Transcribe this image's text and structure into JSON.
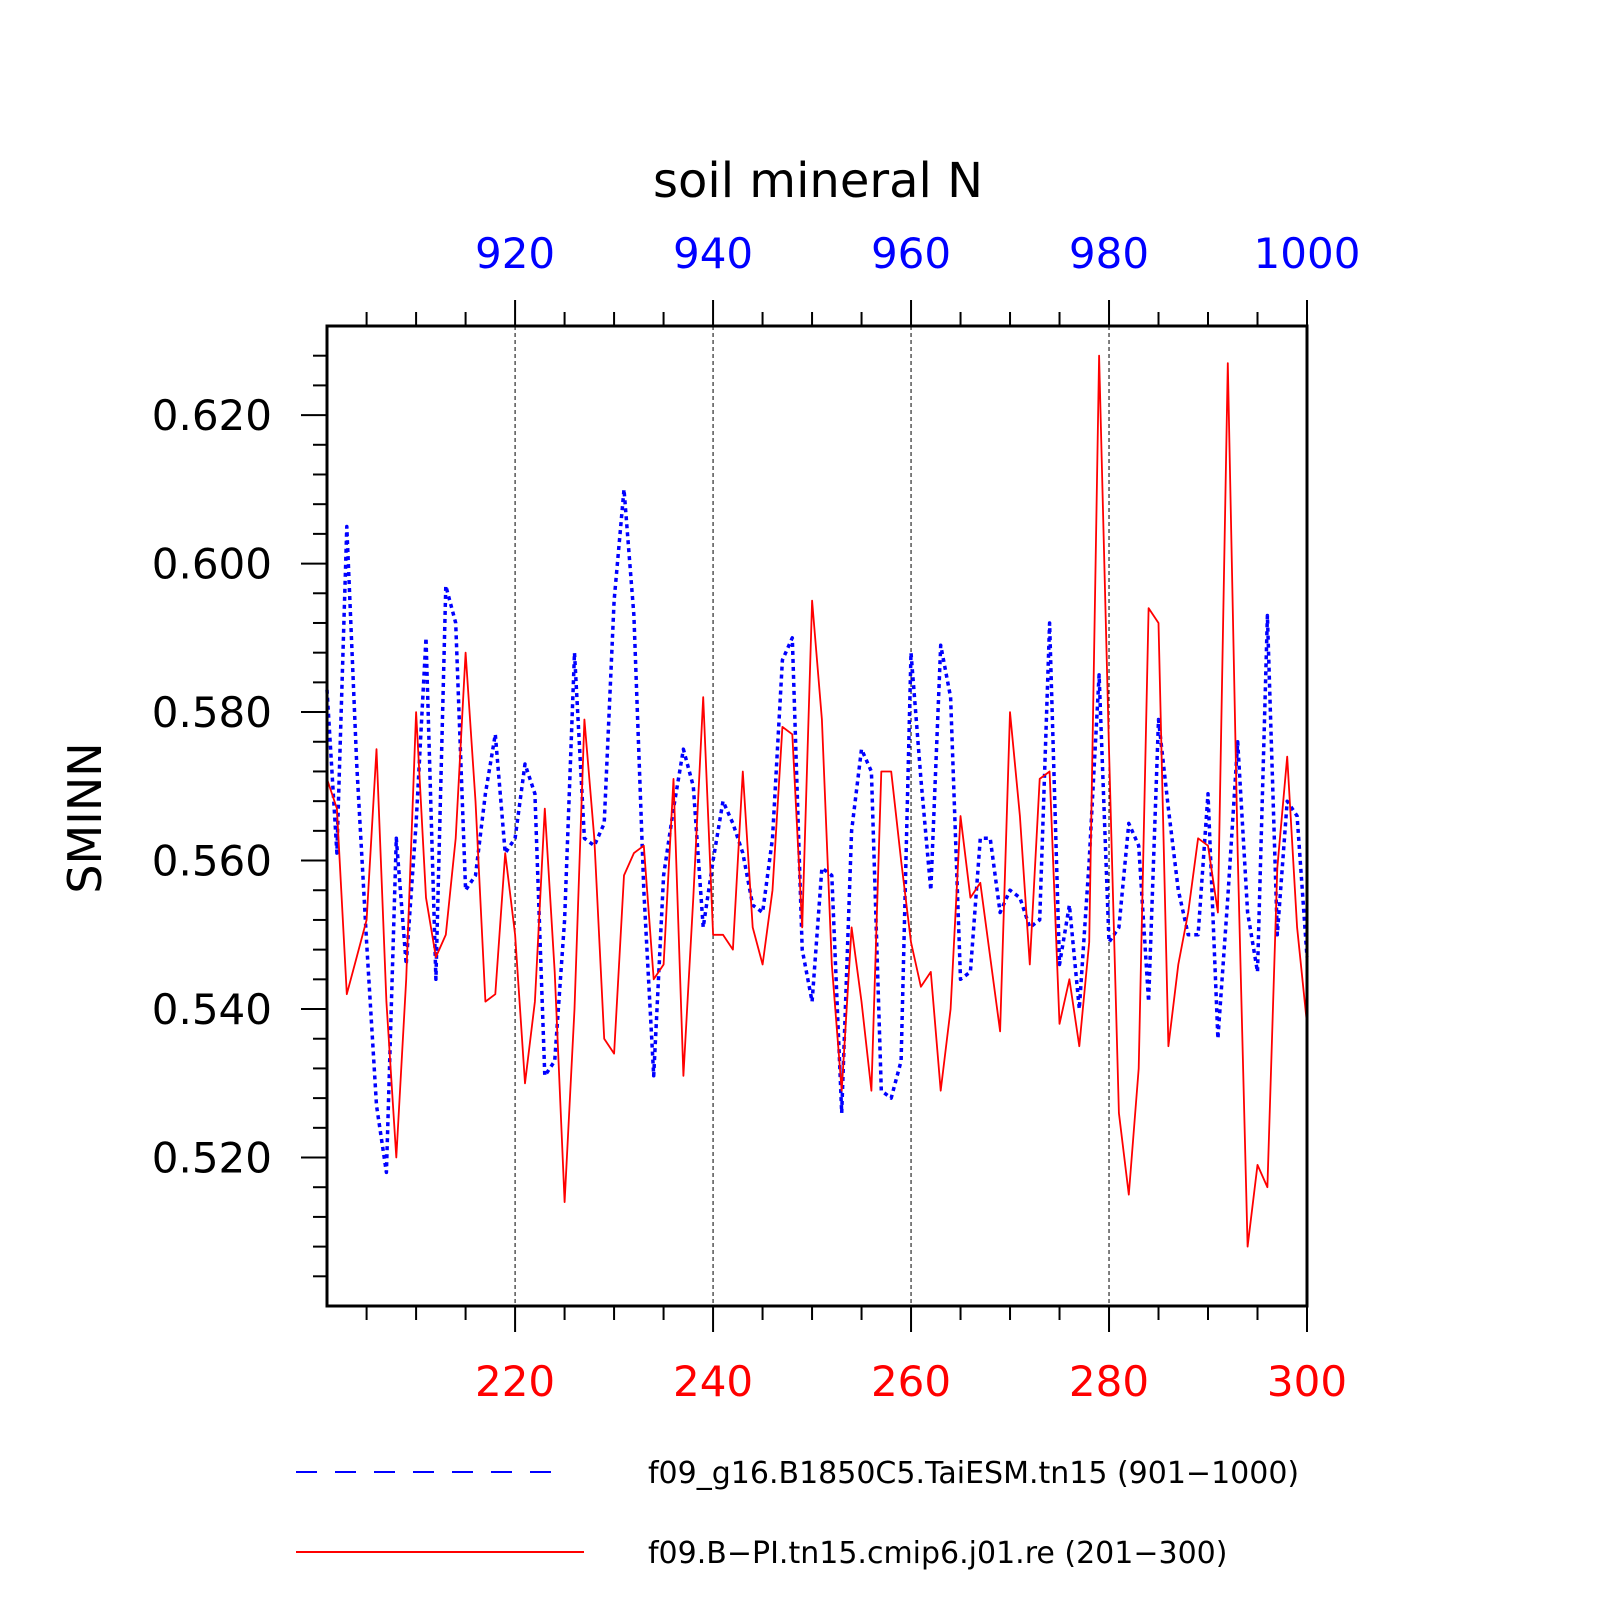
{
  "chart_data": {
    "type": "line",
    "title": "soil mineral N",
    "ylabel": "SMINN",
    "ylim": [
      0.5,
      0.632
    ],
    "y_ticks": [
      "0.520",
      "0.540",
      "0.560",
      "0.580",
      "0.600",
      "0.620"
    ],
    "y_tick_values": [
      0.52,
      0.54,
      0.56,
      0.58,
      0.6,
      0.62
    ],
    "grid": "vertical dashed lines at labeled top/bottom ticks",
    "x_top": {
      "color": "#0000ff",
      "range": [
        901,
        1000
      ],
      "ticks": [
        "920",
        "940",
        "960",
        "980",
        "1000"
      ],
      "tick_values": [
        920,
        940,
        960,
        980,
        1000
      ]
    },
    "x_bottom": {
      "color": "#ff0000",
      "range": [
        201,
        300
      ],
      "ticks": [
        "220",
        "240",
        "260",
        "280",
        "300"
      ],
      "tick_values": [
        220,
        240,
        260,
        280,
        300
      ]
    },
    "series": [
      {
        "name": "f09_g16.B1850C5.TaiESM.tn15 (901−1000)",
        "color": "#0000ff",
        "dash": "dashed",
        "axis": "top",
        "x_start": 901,
        "values": [
          0.583,
          0.561,
          0.605,
          0.573,
          0.549,
          0.527,
          0.518,
          0.563,
          0.546,
          0.565,
          0.59,
          0.544,
          0.597,
          0.592,
          0.556,
          0.558,
          0.569,
          0.577,
          0.561,
          0.563,
          0.573,
          0.569,
          0.531,
          0.533,
          0.552,
          0.588,
          0.563,
          0.562,
          0.565,
          0.595,
          0.61,
          0.593,
          0.556,
          0.531,
          0.558,
          0.567,
          0.575,
          0.57,
          0.551,
          0.56,
          0.568,
          0.565,
          0.561,
          0.554,
          0.553,
          0.563,
          0.587,
          0.59,
          0.548,
          0.541,
          0.559,
          0.558,
          0.526,
          0.564,
          0.575,
          0.572,
          0.529,
          0.528,
          0.533,
          0.588,
          0.571,
          0.556,
          0.589,
          0.582,
          0.544,
          0.545,
          0.563,
          0.563,
          0.553,
          0.556,
          0.555,
          0.551,
          0.552,
          0.592,
          0.546,
          0.554,
          0.54,
          0.56,
          0.585,
          0.549,
          0.551,
          0.565,
          0.562,
          0.541,
          0.579,
          0.567,
          0.556,
          0.55,
          0.55,
          0.569,
          0.536,
          0.555,
          0.576,
          0.553,
          0.545,
          0.593,
          0.55,
          0.568,
          0.566,
          0.547
        ]
      },
      {
        "name": "f09.B−PI.tn15.cmip6.j01.re (201−300)",
        "color": "#ff0000",
        "dash": "solid",
        "axis": "bottom",
        "x_start": 201,
        "values": [
          0.571,
          0.567,
          0.542,
          0.547,
          0.552,
          0.575,
          0.541,
          0.52,
          0.544,
          0.58,
          0.555,
          0.547,
          0.55,
          0.563,
          0.588,
          0.568,
          0.541,
          0.542,
          0.561,
          0.55,
          0.53,
          0.541,
          0.567,
          0.545,
          0.514,
          0.54,
          0.579,
          0.563,
          0.536,
          0.534,
          0.558,
          0.561,
          0.562,
          0.544,
          0.546,
          0.571,
          0.531,
          0.555,
          0.582,
          0.55,
          0.55,
          0.548,
          0.572,
          0.551,
          0.546,
          0.556,
          0.578,
          0.577,
          0.551,
          0.595,
          0.579,
          0.546,
          0.529,
          0.551,
          0.541,
          0.529,
          0.572,
          0.572,
          0.56,
          0.549,
          0.543,
          0.545,
          0.529,
          0.54,
          0.566,
          0.555,
          0.557,
          0.547,
          0.537,
          0.58,
          0.566,
          0.546,
          0.571,
          0.572,
          0.538,
          0.544,
          0.535,
          0.549,
          0.628,
          0.575,
          0.526,
          0.515,
          0.532,
          0.594,
          0.592,
          0.535,
          0.546,
          0.553,
          0.563,
          0.562,
          0.553,
          0.627,
          0.561,
          0.508,
          0.519,
          0.516,
          0.559,
          0.574,
          0.551,
          0.538
        ]
      }
    ],
    "legend": {
      "placement": "bottom",
      "entries": [
        "f09_g16.B1850C5.TaiESM.tn15 (901−1000)",
        "f09.B−PI.tn15.cmip6.j01.re (201−300)"
      ]
    }
  }
}
